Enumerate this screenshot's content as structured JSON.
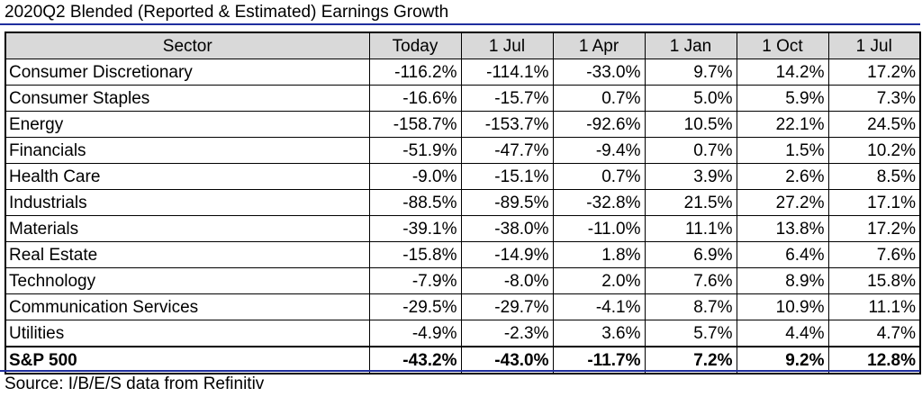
{
  "title": "2020Q2 Blended (Reported & Estimated) Earnings Growth",
  "source": "Source: I/B/E/S data from Refinitiv",
  "colors": {
    "rule": "#1f2e9e",
    "header_bg": "#d9d9d9"
  },
  "chart_data": {
    "type": "table",
    "title": "2020Q2 Blended (Reported & Estimated) Earnings Growth",
    "columns": [
      "Sector",
      "Today",
      "1 Jul",
      "1 Apr",
      "1 Jan",
      "1 Oct",
      "1 Jul"
    ],
    "rows": [
      {
        "sector": "Consumer Discretionary",
        "values": [
          "-116.2%",
          "-114.1%",
          "-33.0%",
          "9.7%",
          "14.2%",
          "17.2%"
        ]
      },
      {
        "sector": "Consumer Staples",
        "values": [
          "-16.6%",
          "-15.7%",
          "0.7%",
          "5.0%",
          "5.9%",
          "7.3%"
        ]
      },
      {
        "sector": "Energy",
        "values": [
          "-158.7%",
          "-153.7%",
          "-92.6%",
          "10.5%",
          "22.1%",
          "24.5%"
        ]
      },
      {
        "sector": "Financials",
        "values": [
          "-51.9%",
          "-47.7%",
          "-9.4%",
          "0.7%",
          "1.5%",
          "10.2%"
        ]
      },
      {
        "sector": "Health Care",
        "values": [
          "-9.0%",
          "-15.1%",
          "0.7%",
          "3.9%",
          "2.6%",
          "8.5%"
        ]
      },
      {
        "sector": "Industrials",
        "values": [
          "-88.5%",
          "-89.5%",
          "-32.8%",
          "21.5%",
          "27.2%",
          "17.1%"
        ]
      },
      {
        "sector": "Materials",
        "values": [
          "-39.1%",
          "-38.0%",
          "-11.0%",
          "11.1%",
          "13.8%",
          "17.2%"
        ]
      },
      {
        "sector": "Real Estate",
        "values": [
          "-15.8%",
          "-14.9%",
          "1.8%",
          "6.9%",
          "6.4%",
          "7.6%"
        ]
      },
      {
        "sector": "Technology",
        "values": [
          "-7.9%",
          "-8.0%",
          "2.0%",
          "7.6%",
          "8.9%",
          "15.8%"
        ]
      },
      {
        "sector": "Communication Services",
        "values": [
          "-29.5%",
          "-29.7%",
          "-4.1%",
          "8.7%",
          "10.9%",
          "11.1%"
        ]
      },
      {
        "sector": "Utilities",
        "values": [
          "-4.9%",
          "-2.3%",
          "3.6%",
          "5.7%",
          "4.4%",
          "4.7%"
        ]
      },
      {
        "sector": "S&P 500",
        "values": [
          "-43.2%",
          "-43.0%",
          "-11.7%",
          "7.2%",
          "9.2%",
          "12.8%"
        ],
        "total": true
      }
    ]
  }
}
